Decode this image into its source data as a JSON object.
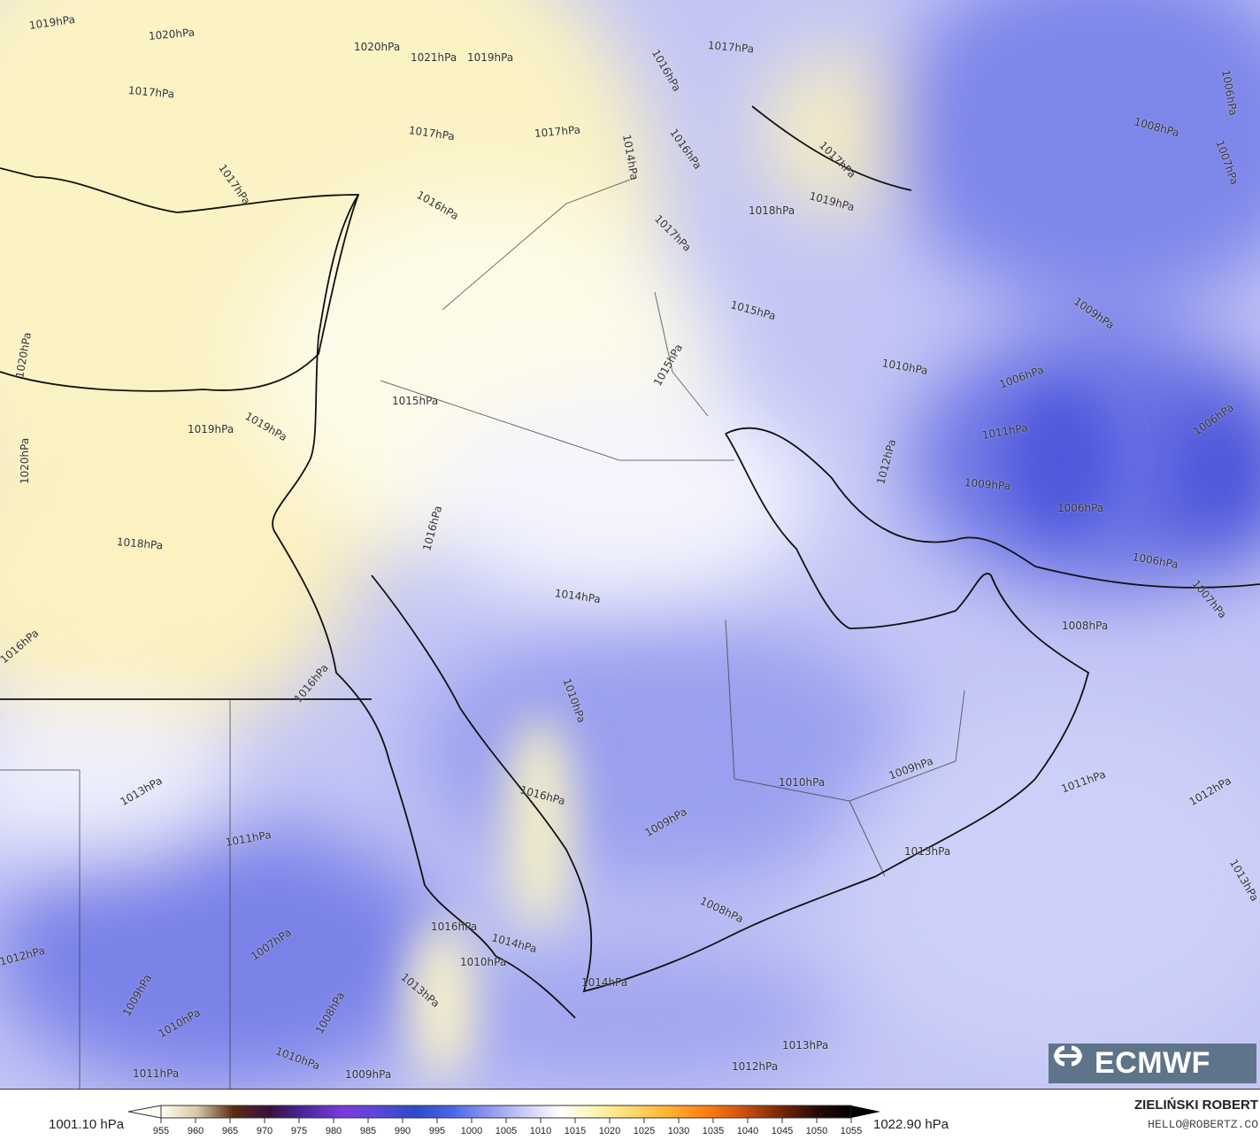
{
  "map": {
    "labels": [
      "1019hPa",
      "1020hPa",
      "1020hPa",
      "1021hPa",
      "1019hPa",
      "1017hPa",
      "1017hPa",
      "1017hPa",
      "1017hPa",
      "1016hPa",
      "1017hPa",
      "1014hPa",
      "1016hPa",
      "1017hPa",
      "1019hPa",
      "1018hPa",
      "1017hPa",
      "1016hPa",
      "1015hPa",
      "1015hPa",
      "1015hPa",
      "1019hPa",
      "1019hPa",
      "1020hPa",
      "1020hPa",
      "1018hPa",
      "1016hPa",
      "1016hPa",
      "1016hPa",
      "1014hPa",
      "1010hPa",
      "1006hPa",
      "1007hPa",
      "1008hPa",
      "1009hPa",
      "1010hPa",
      "1006hPa",
      "1006hPa",
      "1011hPa",
      "1012hPa",
      "1009hPa",
      "1006hPa",
      "1006hPa",
      "1007hPa",
      "1008hPa",
      "1010hPa",
      "1009hPa",
      "1011hPa",
      "1012hPa",
      "1013hPa",
      "1013hPa",
      "1011hPa",
      "1009hPa",
      "1016hPa",
      "1008hPa",
      "1013hPa",
      "1012hPa",
      "1012hPa",
      "1007hPa",
      "1009hPa",
      "1010hPa",
      "1011hPa",
      "1010hPa",
      "1008hPa",
      "1009hPa",
      "1013hPa",
      "1014hPa",
      "1010hPa",
      "1016hPa",
      "1014hPa",
      "1013hPa"
    ]
  },
  "colorbar": {
    "min_label": "1001.10 hPa",
    "max_label": "1022.90 hPa",
    "ticks": [
      "955",
      "960",
      "965",
      "970",
      "975",
      "980",
      "985",
      "990",
      "995",
      "1000",
      "1005",
      "1010",
      "1015",
      "1020",
      "1025",
      "1030",
      "1035",
      "1040",
      "1045",
      "1050",
      "1055"
    ],
    "colors": [
      "#fffdf3",
      "#d9c7a8",
      "#5a2a10",
      "#3a1040",
      "#4a2aa0",
      "#7a3ae0",
      "#5a48d8",
      "#2c4ac8",
      "#4a66e6",
      "#8c96f0",
      "#c8ccf8",
      "#ffffff",
      "#fff2b0",
      "#ffd86a",
      "#ffb030",
      "#ff8010",
      "#d05010",
      "#7a2808",
      "#2a0a04",
      "#000000"
    ]
  },
  "credits": {
    "author": "ZIELIŃSKI ROBERT",
    "email": "HELLO@ROBERTZ.CO",
    "logo_text": "ECMWF"
  }
}
